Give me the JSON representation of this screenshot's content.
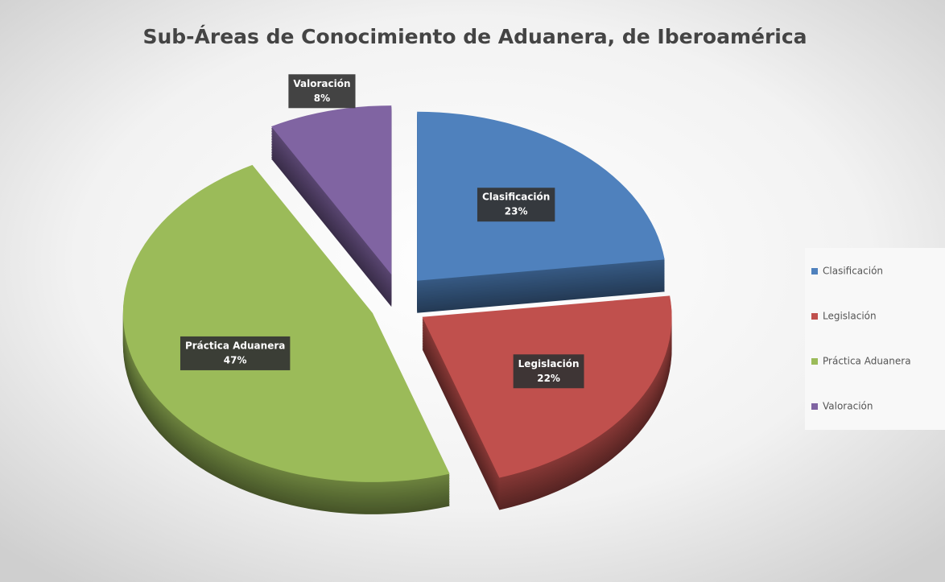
{
  "chart_data": {
    "type": "pie",
    "title": "Sub-Áreas de Conocimiento de Aduanera, de Iberoamérica",
    "categories": [
      "Clasificación",
      "Legislación",
      "Práctica Aduanera",
      "Valoración"
    ],
    "values": [
      23,
      22,
      47,
      8
    ],
    "value_labels": [
      "23%",
      "22%",
      "47%",
      "8%"
    ],
    "colors": [
      "#4f81bd",
      "#c0504d",
      "#9bbb59",
      "#8064a2"
    ],
    "legend": "right"
  }
}
